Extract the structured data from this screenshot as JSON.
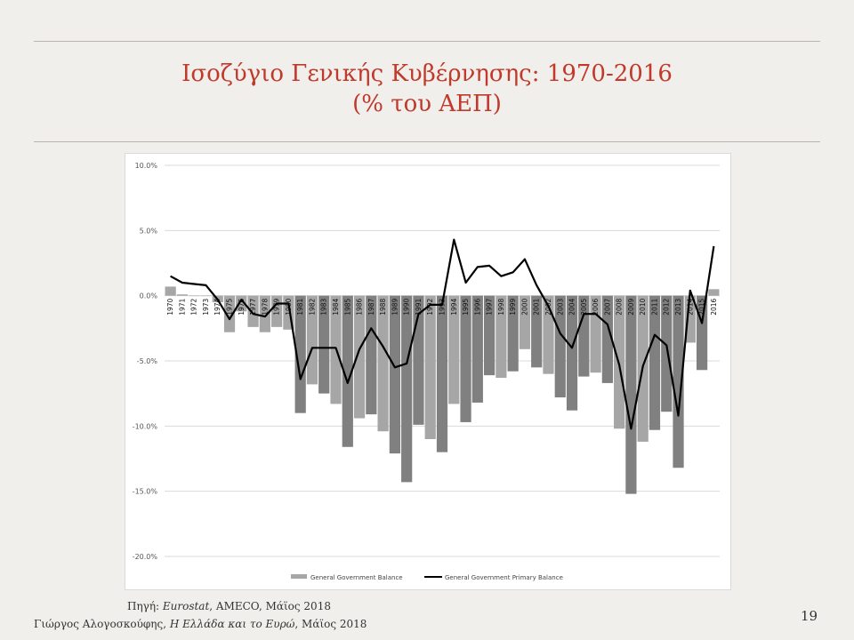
{
  "slide": {
    "title_line1": "Ισοζύγιο Γενικής Κυβέρνησης: 1970-2016",
    "title_line2": "(% του ΑΕΠ)",
    "source_prefix": "Πηγή: ",
    "source_italic": "Eurostat",
    "source_rest": ", AMECO, Μάϊος 2018",
    "author_name": "Γιώργος Αλογοσκούφης, ",
    "author_book": "Η Ελλάδα και το Ευρώ",
    "author_date": ", Μάϊος 2018",
    "page_number": "19"
  },
  "colors": {
    "title": "#c0392b",
    "bar_light": "#a6a6a6",
    "bar_dark": "#808080",
    "line": "#000000",
    "grid": "#d9d9d9"
  },
  "chart_data": {
    "type": "bar+line",
    "categories": [
      "1970",
      "1971",
      "1972",
      "1973",
      "1974",
      "1975",
      "1976",
      "1977",
      "1978",
      "1979",
      "1980",
      "1981",
      "1982",
      "1983",
      "1984",
      "1985",
      "1986",
      "1987",
      "1988",
      "1989",
      "1990",
      "1991",
      "1992",
      "1993",
      "1994",
      "1995",
      "1996",
      "1997",
      "1998",
      "1999",
      "2000",
      "2001",
      "2002",
      "2003",
      "2004",
      "2005",
      "2006",
      "2007",
      "2008",
      "2009",
      "2010",
      "2011",
      "2012",
      "2013",
      "2014",
      "2015",
      "2016"
    ],
    "y_ticks": [
      "10.0%",
      "5.0%",
      "0.0%",
      "-5.0%",
      "-10.0%",
      "-15.0%",
      "-20.0%"
    ],
    "ylim": [
      -20,
      10
    ],
    "grid": true,
    "legend_position": "bottom",
    "series": [
      {
        "name": "General Government Balance",
        "type": "bar",
        "values": [
          0.7,
          0.1,
          0.0,
          0.0,
          -0.5,
          -2.8,
          -1.2,
          -2.4,
          -2.8,
          -2.4,
          -2.6,
          -9.0,
          -6.8,
          -7.5,
          -8.3,
          -11.6,
          -9.4,
          -9.1,
          -10.4,
          -12.1,
          -14.3,
          -9.9,
          -11.0,
          -12.0,
          -8.3,
          -9.7,
          -8.2,
          -6.1,
          -6.3,
          -5.8,
          -4.1,
          -5.5,
          -6.0,
          -7.8,
          -8.8,
          -6.2,
          -5.9,
          -6.7,
          -10.2,
          -15.2,
          -11.2,
          -10.3,
          -8.9,
          -13.2,
          -3.6,
          -5.7,
          0.5
        ]
      },
      {
        "name": "General Government Primary Balance",
        "type": "line",
        "values": [
          1.5,
          1.0,
          0.9,
          0.8,
          -0.3,
          -1.8,
          -0.3,
          -1.4,
          -1.6,
          -0.6,
          -0.6,
          -6.4,
          -4.0,
          -4.0,
          -4.0,
          -6.7,
          -4.1,
          -2.5,
          -3.9,
          -5.5,
          -5.2,
          -1.4,
          -0.7,
          -0.7,
          4.3,
          1.0,
          2.2,
          2.3,
          1.5,
          1.8,
          2.8,
          0.8,
          -0.8,
          -2.9,
          -4.0,
          -1.4,
          -1.4,
          -2.2,
          -5.3,
          -10.2,
          -5.4,
          -3.0,
          -3.8,
          -9.2,
          0.4,
          -2.1,
          3.8
        ]
      }
    ]
  }
}
